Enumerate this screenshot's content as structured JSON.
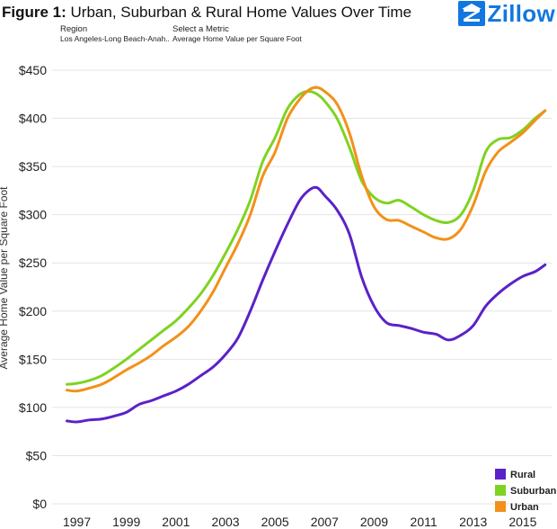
{
  "header": {
    "figure_label": "Figure 1:",
    "title_rest": " Urban, Suburban & Rural Home Values Over Time",
    "region_label": "Region",
    "region_value": "Los Angeles-Long Beach-Anah..",
    "metric_label": "Select a Metric",
    "metric_value": "Average Home Value per Square Foot",
    "logo_text": "Zillow",
    "logo_color": "#1277e1"
  },
  "chart_data": {
    "type": "line",
    "title": "Urban, Suburban & Rural Home Values Over Time",
    "xlabel": "",
    "ylabel": "Average Home Value per Square Foot",
    "ylim": [
      0,
      450
    ],
    "xlim": [
      1996.0,
      2016.2
    ],
    "yticks": [
      0,
      50,
      100,
      150,
      200,
      250,
      300,
      350,
      400,
      450
    ],
    "ytick_labels": [
      "$0",
      "$50",
      "$100",
      "$150",
      "$200",
      "$250",
      "$300",
      "$350",
      "$400",
      "$450"
    ],
    "xticks": [
      1997,
      1999,
      2001,
      2003,
      2005,
      2007,
      2009,
      2011,
      2013,
      2015
    ],
    "xtick_labels": [
      "1997",
      "1999",
      "2001",
      "2003",
      "2005",
      "2007",
      "2009",
      "2011",
      "2013",
      "2015"
    ],
    "grid": true,
    "legend_position": "bottom-right",
    "series": [
      {
        "name": "Rural",
        "color": "#5b21c9",
        "x": [
          1996.6,
          1997.0,
          1997.5,
          1998.0,
          1998.5,
          1999.0,
          1999.5,
          2000.0,
          2000.5,
          2001.0,
          2001.5,
          2002.0,
          2002.5,
          2003.0,
          2003.5,
          2004.0,
          2004.5,
          2005.0,
          2005.5,
          2006.0,
          2006.4,
          2006.7,
          2007.0,
          2007.5,
          2008.0,
          2008.5,
          2009.0,
          2009.5,
          2010.0,
          2010.5,
          2011.0,
          2011.5,
          2012.0,
          2012.5,
          2013.0,
          2013.5,
          2014.0,
          2014.5,
          2015.0,
          2015.5,
          2015.9
        ],
        "values": [
          86,
          85,
          87,
          88,
          91,
          95,
          103,
          107,
          112,
          117,
          124,
          133,
          142,
          155,
          172,
          200,
          232,
          262,
          290,
          315,
          326,
          328,
          320,
          305,
          280,
          235,
          205,
          188,
          185,
          182,
          178,
          176,
          170,
          175,
          185,
          205,
          218,
          228,
          236,
          241,
          248
        ]
      },
      {
        "name": "Suburban",
        "color": "#7ed321",
        "x": [
          1996.6,
          1997.0,
          1997.5,
          1998.0,
          1998.5,
          1999.0,
          1999.5,
          2000.0,
          2000.5,
          2001.0,
          2001.5,
          2002.0,
          2002.5,
          2003.0,
          2003.5,
          2004.0,
          2004.5,
          2005.0,
          2005.5,
          2006.0,
          2006.4,
          2006.7,
          2007.0,
          2007.5,
          2008.0,
          2008.5,
          2009.0,
          2009.5,
          2010.0,
          2010.5,
          2011.0,
          2011.5,
          2012.0,
          2012.5,
          2013.0,
          2013.5,
          2014.0,
          2014.5,
          2015.0,
          2015.5,
          2015.9
        ],
        "values": [
          124,
          125,
          128,
          133,
          141,
          150,
          160,
          170,
          180,
          190,
          203,
          218,
          237,
          260,
          285,
          315,
          355,
          380,
          410,
          425,
          428,
          425,
          418,
          400,
          370,
          335,
          318,
          312,
          315,
          308,
          300,
          294,
          292,
          300,
          325,
          365,
          378,
          380,
          388,
          400,
          408
        ]
      },
      {
        "name": "Urban",
        "color": "#f39019",
        "x": [
          1996.6,
          1997.0,
          1997.5,
          1998.0,
          1998.5,
          1999.0,
          1999.5,
          2000.0,
          2000.5,
          2001.0,
          2001.5,
          2002.0,
          2002.5,
          2003.0,
          2003.5,
          2004.0,
          2004.5,
          2005.0,
          2005.5,
          2006.0,
          2006.4,
          2006.7,
          2007.0,
          2007.5,
          2008.0,
          2008.5,
          2009.0,
          2009.5,
          2010.0,
          2010.5,
          2011.0,
          2011.5,
          2012.0,
          2012.5,
          2013.0,
          2013.5,
          2014.0,
          2014.5,
          2015.0,
          2015.5,
          2015.9
        ],
        "values": [
          118,
          117,
          120,
          124,
          131,
          139,
          146,
          154,
          164,
          173,
          184,
          200,
          220,
          245,
          270,
          300,
          340,
          365,
          400,
          420,
          430,
          432,
          428,
          415,
          385,
          340,
          308,
          295,
          294,
          288,
          282,
          276,
          275,
          285,
          310,
          345,
          365,
          375,
          385,
          398,
          408
        ]
      }
    ]
  }
}
